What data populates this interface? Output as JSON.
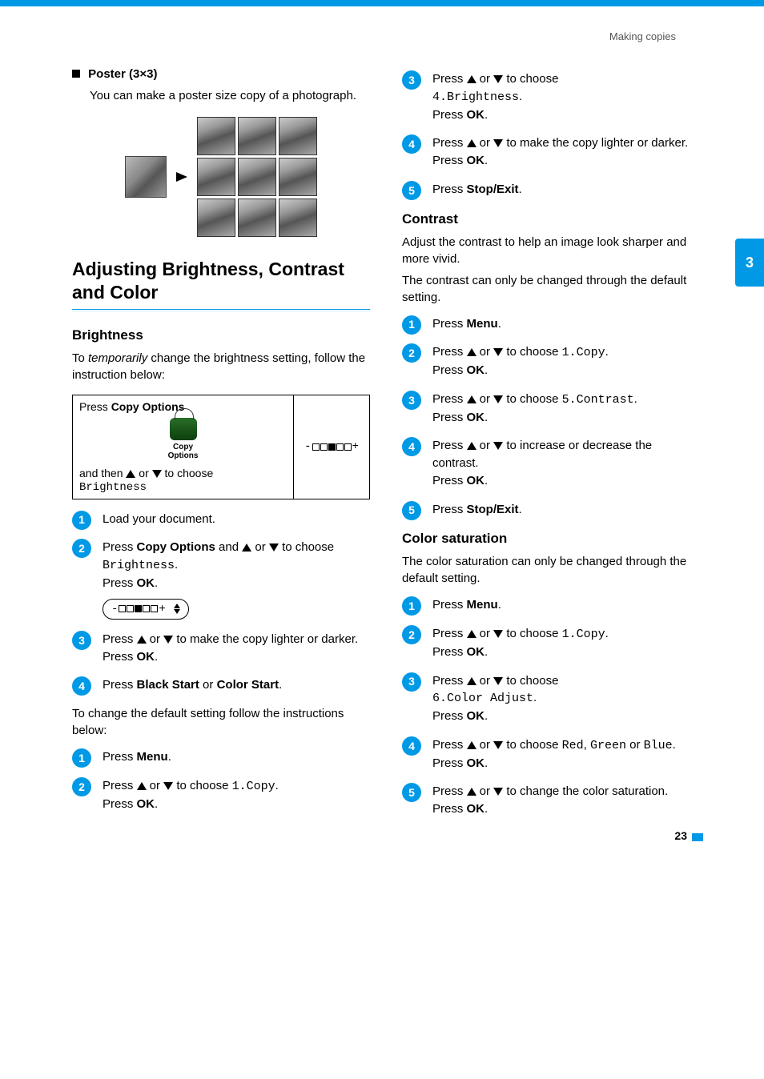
{
  "page": {
    "header": "Making copies",
    "chapter_tab": "3",
    "page_number": "23"
  },
  "left": {
    "poster_heading": "Poster (3×3)",
    "poster_text": "You can make a poster size copy of a photograph.",
    "section_title": "Adjusting Brightness, Contrast and Color",
    "brightness_heading": "Brightness",
    "brightness_intro_a": "To ",
    "brightness_intro_em": "temporarily",
    "brightness_intro_b": " change the brightness setting, follow the instruction below:",
    "table": {
      "press": "Press ",
      "copy_options_bold": "Copy  Options",
      "btn_caption": "Copy Options",
      "and_then_a": "and then ",
      "and_then_b": " or ",
      "and_then_c": " to choose",
      "brightness_mono": "Brightness",
      "indicator": "-□□■□□+"
    },
    "steps_a": {
      "s1": "Load your document.",
      "s2_a": "Press ",
      "s2_bold": "Copy Options",
      "s2_b": " and ",
      "s2_c": " or ",
      "s2_d": " to choose ",
      "s2_mono": "Brightness",
      "s2_e": ".",
      "s2_press": "Press ",
      "s2_ok": "OK",
      "lcd": "-□□■□□+",
      "s3_a": "Press ",
      "s3_b": " or ",
      "s3_c": " to make the copy lighter or darker.",
      "s3_press": "Press ",
      "s3_ok": "OK",
      "s4_a": "Press ",
      "s4_b1": "Black Start",
      "s4_or": " or ",
      "s4_b2": "Color Start",
      "s4_dot": "."
    },
    "default_intro": "To change the default setting follow the instructions below:",
    "steps_b": {
      "s1_a": "Press ",
      "s1_bold": "Menu",
      "s2_a": "Press ",
      "s2_b": " or ",
      "s2_c": " to choose ",
      "s2_mono": "1.Copy",
      "s2_dot": ".",
      "s2_press": "Press ",
      "s2_ok": "OK"
    }
  },
  "right": {
    "r_s3_a": "Press ",
    "r_s3_b": " or ",
    "r_s3_c": " to choose",
    "r_s3_mono": "4.Brightness",
    "r_s3_dot": ".",
    "press_ok_a": "Press ",
    "press_ok_b": "OK",
    "r_s4_a": "Press ",
    "r_s4_b": " or ",
    "r_s4_c": " to make the copy lighter or darker.",
    "r_s5_a": "Press ",
    "r_s5_bold": "Stop/Exit",
    "contrast_heading": "Contrast",
    "contrast_p1": "Adjust the contrast to help an image look sharper and more vivid.",
    "contrast_p2": "The contrast can only be changed through the default setting.",
    "c_s1_a": "Press ",
    "c_s1_bold": "Menu",
    "c_s2_a": "Press ",
    "c_s2_b": " or ",
    "c_s2_c": " to choose ",
    "c_s2_mono": "1.Copy",
    "c_s3_a": "Press ",
    "c_s3_b": " or ",
    "c_s3_c": " to choose ",
    "c_s3_mono": "5.Contrast",
    "c_s4_a": "Press ",
    "c_s4_b": " or ",
    "c_s4_c": " to increase or decrease the contrast.",
    "c_s5_a": "Press ",
    "c_s5_bold": "Stop/Exit",
    "color_heading": "Color saturation",
    "color_p1": "The color saturation can only be changed through the default setting.",
    "k_s1_a": "Press ",
    "k_s1_bold": "Menu",
    "k_s2_a": "Press ",
    "k_s2_b": " or ",
    "k_s2_c": " to choose ",
    "k_s2_mono": "1.Copy",
    "k_s3_a": "Press ",
    "k_s3_b": " or ",
    "k_s3_c": " to choose",
    "k_s3_mono": "6.Color Adjust",
    "k_s4_a": "Press ",
    "k_s4_b": " or ",
    "k_s4_c": " to choose ",
    "k_s4_red": "Red",
    "k_s4_comma": ", ",
    "k_s4_green": "Green",
    "k_s4_or": " or ",
    "k_s4_blue": "Blue",
    "k_s5_a": "Press ",
    "k_s5_b": " or ",
    "k_s5_c": " to change the color saturation."
  }
}
